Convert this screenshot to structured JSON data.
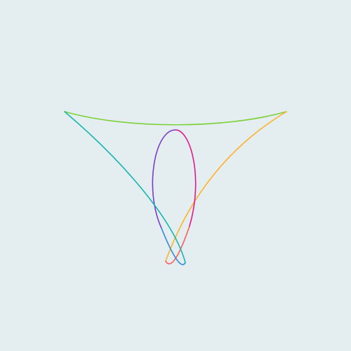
{
  "canvas": {
    "background": "#E4EEF1"
  },
  "curve": {
    "stroke_colors": [
      "#7DD13A",
      "#FFB12A",
      "#FF5A57",
      "#E0198C",
      "#7A3CC9",
      "#2E8AD6",
      "#17B6B0"
    ]
  }
}
